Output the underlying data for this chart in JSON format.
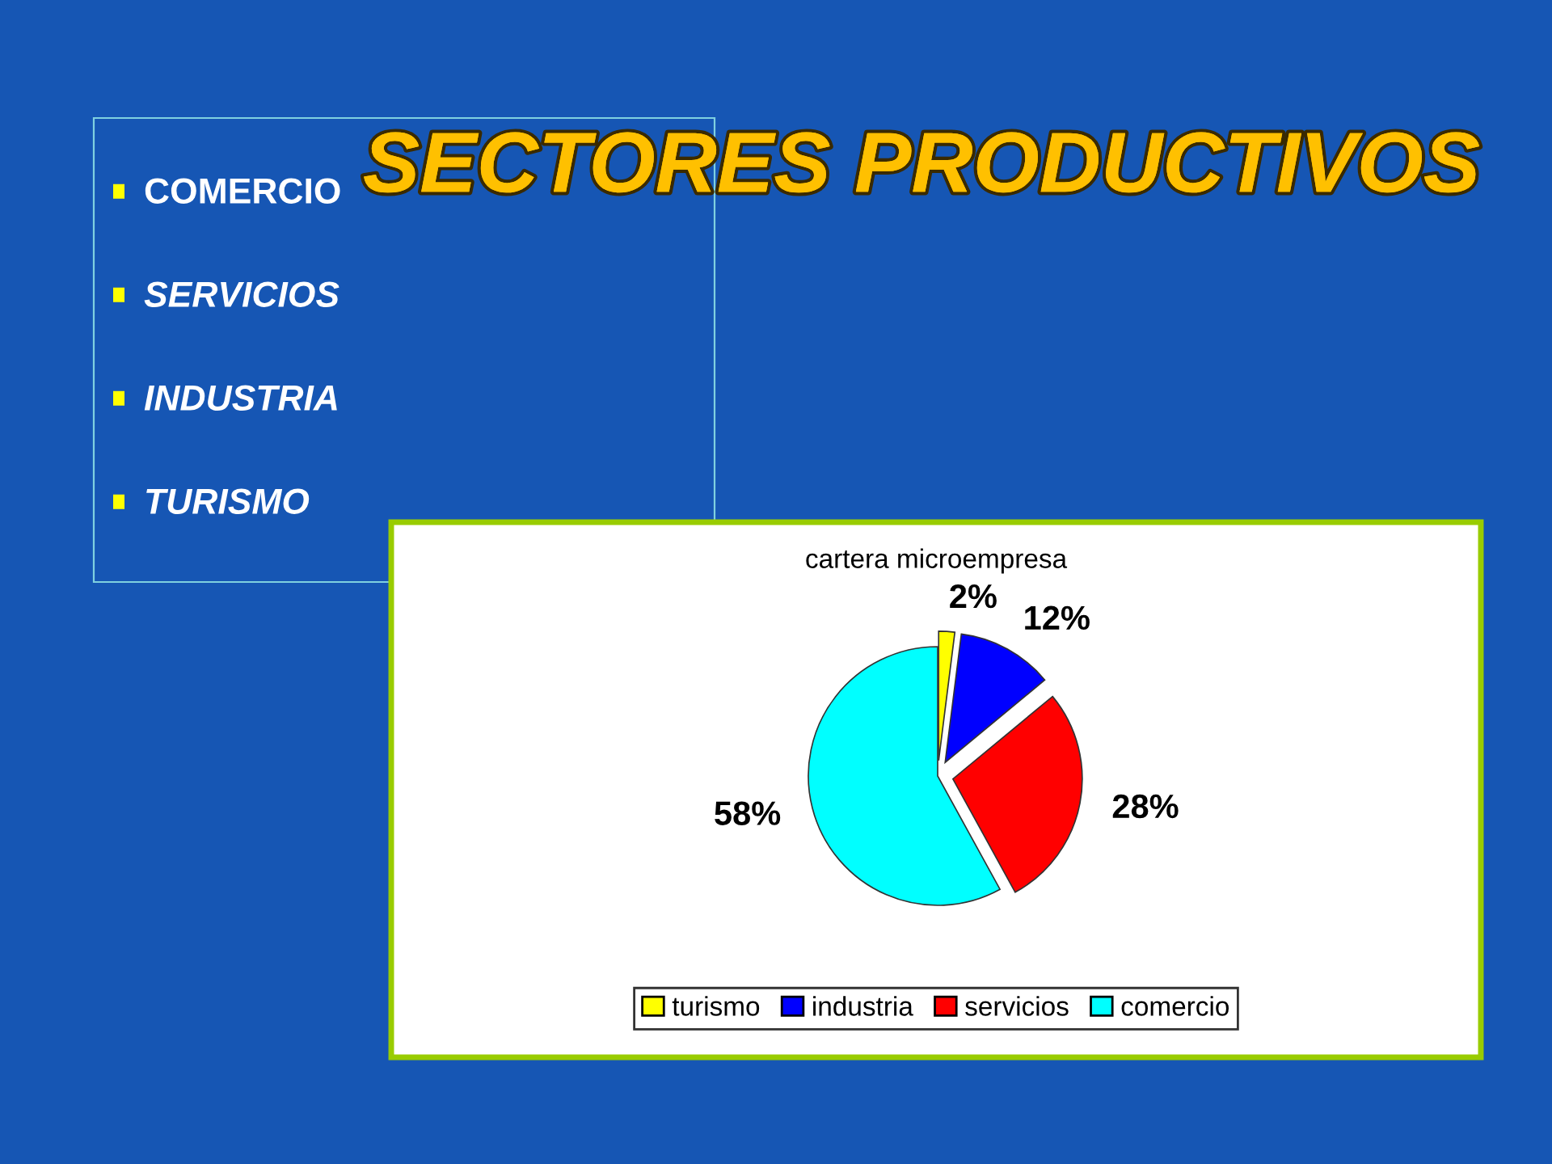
{
  "chart_data": {
    "type": "pie",
    "title": "SECTORES PRODUCTIVOS",
    "subtitle": "cartera microempresa",
    "categories": [
      "turismo",
      "industria",
      "servicios",
      "comercio"
    ],
    "values": [
      2,
      12,
      28,
      58
    ],
    "value_labels": [
      "2%",
      "12%",
      "28%",
      "58%"
    ],
    "colors": [
      "#ffff00",
      "#0000ff",
      "#ff0000",
      "#00ffff"
    ],
    "legend": "bottom",
    "annotations": [
      "COMERCIO",
      "SERVICIOS",
      "INDUSTRIA",
      "TURISMO"
    ]
  }
}
